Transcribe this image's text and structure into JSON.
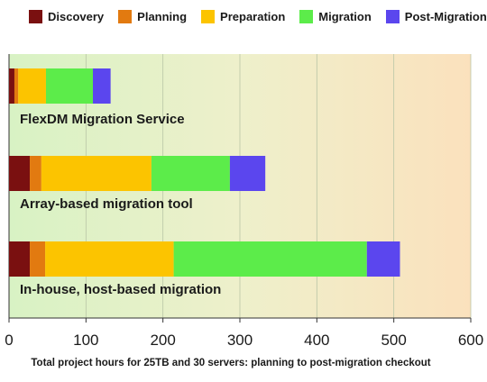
{
  "chart_data": {
    "type": "bar",
    "orientation": "horizontal",
    "stacked": true,
    "categories": [
      "FlexDM Migration Service",
      "Array-based migration tool",
      "In-house, host-based migration"
    ],
    "series": [
      {
        "name": "Discovery",
        "color": "#7a1010",
        "values": [
          7,
          27,
          27
        ]
      },
      {
        "name": "Planning",
        "color": "#e27a10",
        "values": [
          5,
          15,
          20
        ]
      },
      {
        "name": "Preparation",
        "color": "#fcc400",
        "values": [
          36,
          143,
          167
        ]
      },
      {
        "name": "Migration",
        "color": "#5cec4a",
        "values": [
          61,
          102,
          251
        ]
      },
      {
        "name": "Post-Migration",
        "color": "#5b46ee",
        "values": [
          23,
          46,
          43
        ]
      }
    ],
    "x_ticks": [
      0,
      100,
      200,
      300,
      400,
      500,
      600
    ],
    "xlim": [
      0,
      600
    ],
    "xlabel": "Total project hours for 25TB and 30 servers: planning to post-migration checkout",
    "ylabel": "",
    "title": "",
    "grid": "vertical",
    "legend": "top"
  }
}
